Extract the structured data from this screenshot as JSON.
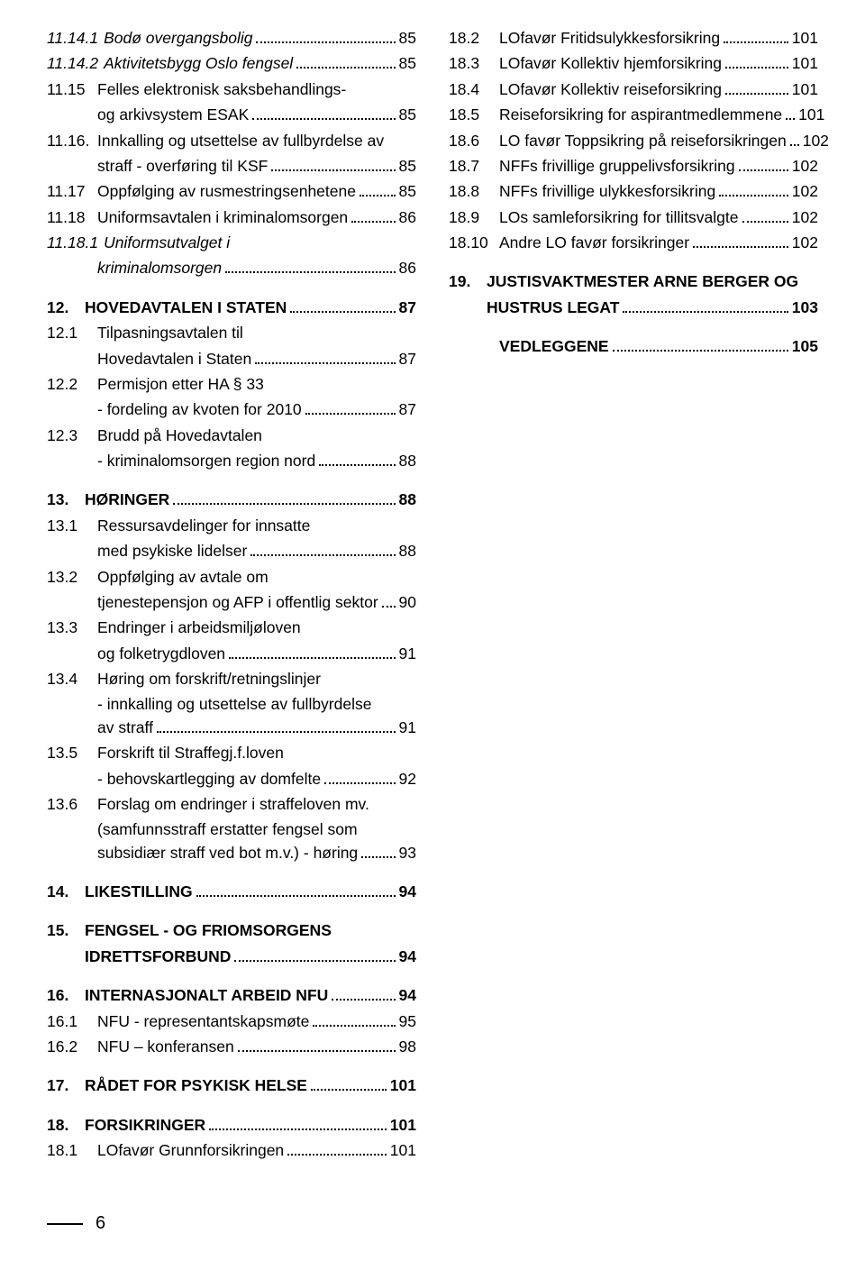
{
  "colors": {
    "text": "#000000",
    "background": "#ffffff",
    "dots": "#000000"
  },
  "typography": {
    "body_fontsize_pt": 13,
    "bold_weight": 700,
    "line_height": 1.45
  },
  "page_number": "6",
  "left": [
    {
      "num": "11.14.1",
      "label": "Bodø overgangsbolig",
      "page": "85",
      "italic": true
    },
    {
      "num": "11.14.2",
      "label": "Aktivitetsbygg Oslo fengsel",
      "page": "85",
      "italic": true
    },
    {
      "num": "11.15",
      "label": "Felles elektronisk saksbehandlings-",
      "cont": "og arkivsystem ESAK",
      "page": "85"
    },
    {
      "num": "11.16.",
      "label": "Innkalling og utsettelse av fullbyrdelse av",
      "cont": "straff - overføring til KSF",
      "page": "85"
    },
    {
      "num": "11.17",
      "label": "Oppfølging av rusmestringsenhetene",
      "page": "85"
    },
    {
      "num": "11.18",
      "label": "Uniformsavtalen i kriminalomsorgen",
      "page": "86"
    },
    {
      "num": "11.18.1",
      "label": "Uniformsutvalget i",
      "cont": "kriminalomsorgen",
      "page": "86",
      "italic": true
    },
    {
      "num": "12.",
      "label": "HOVEDAVTALEN I STATEN",
      "page": "87",
      "bold": true,
      "space": true,
      "section": true
    },
    {
      "num": "12.1",
      "label": "Tilpasningsavtalen til",
      "cont": "Hovedavtalen i Staten",
      "page": "87"
    },
    {
      "num": "12.2",
      "label": "Permisjon etter HA § 33",
      "cont": "- fordeling av kvoten for 2010",
      "page": "87"
    },
    {
      "num": "12.3",
      "label": "Brudd på Hovedavtalen",
      "cont": "- kriminalomsorgen region nord",
      "page": "88"
    },
    {
      "num": "13.",
      "label": "HØRINGER",
      "page": "88",
      "bold": true,
      "space": true,
      "section": true
    },
    {
      "num": "13.1",
      "label": "Ressursavdelinger for innsatte",
      "cont": "med psykiske lidelser",
      "page": "88"
    },
    {
      "num": "13.2",
      "label": "Oppfølging av avtale om",
      "cont": "tjenestepensjon og AFP i offentlig sektor",
      "page": "90"
    },
    {
      "num": "13.3",
      "label": "Endringer i arbeidsmiljøloven",
      "cont": "og folketrygdloven",
      "page": "91"
    },
    {
      "num": "13.4",
      "label": "Høring om forskrift/retningslinjer",
      "cont2": "- innkalling og utsettelse av fullbyrdelse",
      "cont": "av  straff",
      "page": "91"
    },
    {
      "num": "13.5",
      "label": "Forskrift til Straffegj.f.loven",
      "cont": "- behovskartlegging av domfelte",
      "page": "92"
    },
    {
      "num": "13.6",
      "label": "Forslag om endringer i straffeloven mv.",
      "cont2": "(samfunnsstraff erstatter fengsel som",
      "cont": "subsidiær straff ved bot m.v.) - høring",
      "page": "93"
    },
    {
      "num": "14.",
      "label": "LIKESTILLING",
      "page": "94",
      "bold": true,
      "space": true,
      "section": true
    },
    {
      "num": "15.",
      "label": "FENGSEL - OG FRIOMSORGENS",
      "cont": "IDRETTSFORBUND",
      "page": "94",
      "bold": true,
      "space": true,
      "section": true
    },
    {
      "num": "16.",
      "label": "INTERNASJONALT ARBEID NFU",
      "page": "94",
      "bold": true,
      "space": true,
      "section": true
    },
    {
      "num": "16.1",
      "label": "NFU - representantskapsmøte",
      "page": "95"
    },
    {
      "num": "16.2",
      "label": "NFU – konferansen",
      "page": "98"
    },
    {
      "num": "17.",
      "label": "RÅDET FOR PSYKISK HELSE",
      "page": "101",
      "bold": true,
      "space": true,
      "section": true
    },
    {
      "num": "18.",
      "label": "FORSIKRINGER",
      "page": "101",
      "bold": true,
      "space": true,
      "section": true
    },
    {
      "num": "18.1",
      "label": "LOfavør Grunnforsikringen",
      "page": "101"
    }
  ],
  "right": [
    {
      "num": "18.2",
      "label": "LOfavør Fritidsulykkesforsikring",
      "page": "101"
    },
    {
      "num": "18.3",
      "label": "LOfavør Kollektiv hjemforsikring",
      "page": "101"
    },
    {
      "num": "18.4",
      "label": "LOfavør Kollektiv reiseforsikring",
      "page": "101"
    },
    {
      "num": "18.5",
      "label": "Reiseforsikring for aspirantmedlemmene",
      "page": "101"
    },
    {
      "num": "18.6",
      "label": "LO favør Toppsikring på reiseforsikringen",
      "page": "102"
    },
    {
      "num": "18.7",
      "label": "NFFs frivillige gruppelivsforsikring",
      "page": "102"
    },
    {
      "num": "18.8",
      "label": "NFFs frivillige ulykkesforsikring",
      "page": "102"
    },
    {
      "num": "18.9",
      "label": "LOs samleforsikring for tillitsvalgte",
      "page": "102"
    },
    {
      "num": "18.10",
      "label": "Andre LO favør forsikringer",
      "page": "102"
    },
    {
      "num": "19.",
      "label": "JUSTISVAKTMESTER ARNE BERGER OG",
      "cont": "HUSTRUS LEGAT",
      "page": "103",
      "bold": true,
      "space": true,
      "section": true
    },
    {
      "num": "",
      "label": "VEDLEGGENE",
      "page": "105",
      "bold": true,
      "space": true
    }
  ]
}
